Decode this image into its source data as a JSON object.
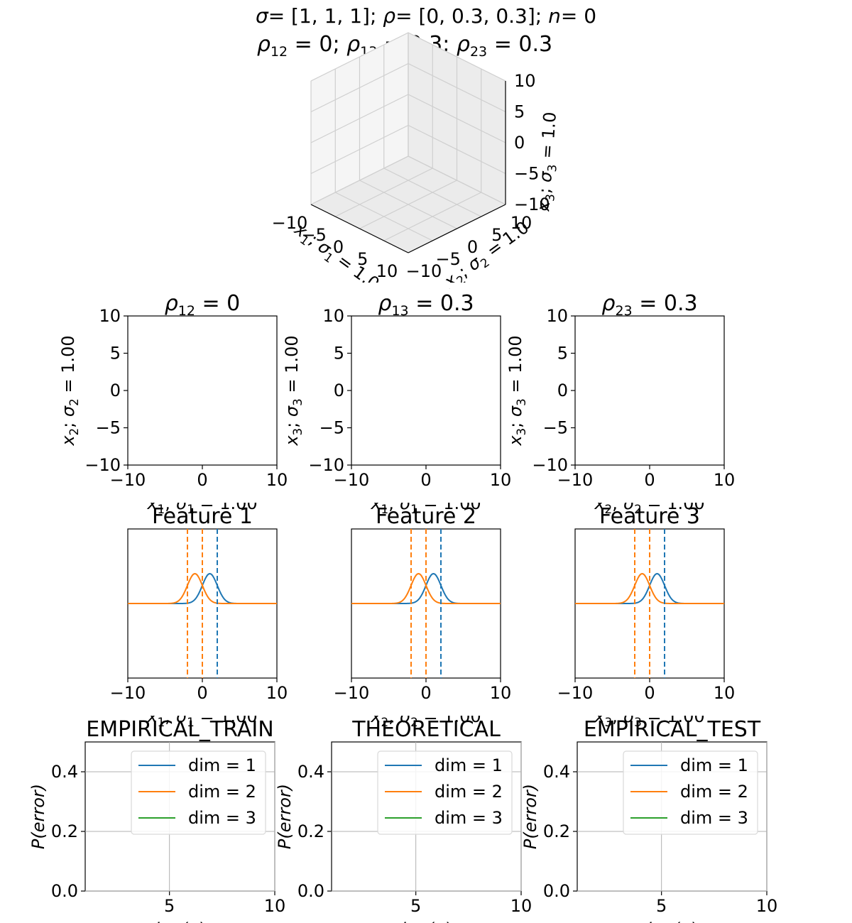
{
  "title": {
    "line1": {
      "sigma_label": "σ",
      "sigma_value": " [1, 1, 1]; ",
      "rho_label": "ρ",
      "rho_value": " [0, 0.3, 0.3]; ",
      "n_label": "n",
      "n_value": " 0"
    },
    "line2": {
      "rho12": "0",
      "rho13": "0.3",
      "rho23": "0.3"
    }
  },
  "colors": {
    "blue": "#1f77b4",
    "orange": "#ff7f0e",
    "green": "#2ca02c",
    "grid": "#b0b0b0"
  },
  "chart_data": [
    {
      "type": "scatter3d",
      "title": "",
      "xlabel": "x1; σ1 = 1.0",
      "ylabel": "x2; σ2 = 1.0",
      "zlabel": "x3; σ3 = 1.0",
      "xlim": [
        -10,
        10
      ],
      "ylim": [
        -10,
        10
      ],
      "zlim": [
        -10,
        10
      ],
      "xticks": [
        "−10",
        "−5",
        "0",
        "5",
        "10"
      ],
      "yticks": [
        "−10",
        "−5",
        "0",
        "5",
        "10"
      ],
      "zticks": [
        "−10",
        "−5",
        "0",
        "5",
        "10"
      ],
      "points": []
    },
    {
      "type": "scatter",
      "title": "ρ12 = 0",
      "title_sub": "12",
      "title_value": "0",
      "xlabel": "x1; σ1 = 1.00",
      "ylabel": "x2; σ2 = 1.00",
      "xlim": [
        -10,
        10
      ],
      "ylim": [
        -10,
        10
      ],
      "xticks": [
        "−10",
        "0",
        "10"
      ],
      "yticks": [
        "10",
        "5",
        "0",
        "−5",
        "−10"
      ],
      "points": []
    },
    {
      "type": "scatter",
      "title": "ρ13 = 0.3",
      "title_sub": "13",
      "title_value": "0.3",
      "xlabel": "x1; σ1 = 1.00",
      "ylabel": "x3; σ3 = 1.00",
      "xlim": [
        -10,
        10
      ],
      "ylim": [
        -10,
        10
      ],
      "xticks": [
        "−10",
        "0",
        "10"
      ],
      "yticks": [
        "10",
        "5",
        "0",
        "−5",
        "−10"
      ],
      "points": []
    },
    {
      "type": "scatter",
      "title": "ρ23 = 0.3",
      "title_sub": "23",
      "title_value": "0.3",
      "xlabel": "x2; σ2 = 1.00",
      "ylabel": "x3; σ3 = 1.00",
      "xlim": [
        -10,
        10
      ],
      "ylim": [
        -10,
        10
      ],
      "xticks": [
        "−10",
        "0",
        "10"
      ],
      "yticks": [
        "10",
        "5",
        "0",
        "−5",
        "−10"
      ],
      "points": []
    },
    {
      "type": "line",
      "title": "Feature 1",
      "xlabel": "x1; σ1 = 1.00",
      "xlim": [
        -10,
        10
      ],
      "xticks": [
        "−10",
        "0",
        "10"
      ],
      "series": [
        {
          "color": "blue",
          "mean": 1,
          "sigma": 1
        },
        {
          "color": "orange",
          "mean": -1,
          "sigma": 1
        }
      ],
      "vlines": [
        {
          "x": 2,
          "color": "blue"
        },
        {
          "x": 0,
          "color": "orange"
        },
        {
          "x": -2,
          "color": "orange"
        }
      ]
    },
    {
      "type": "line",
      "title": "Feature 2",
      "xlabel": "x2; σ2 = 1.00",
      "xlim": [
        -10,
        10
      ],
      "xticks": [
        "−10",
        "0",
        "10"
      ],
      "series": [
        {
          "color": "blue",
          "mean": 1,
          "sigma": 1
        },
        {
          "color": "orange",
          "mean": -1,
          "sigma": 1
        }
      ],
      "vlines": [
        {
          "x": 2,
          "color": "blue"
        },
        {
          "x": 0,
          "color": "orange"
        },
        {
          "x": -2,
          "color": "orange"
        }
      ]
    },
    {
      "type": "line",
      "title": "Feature 3",
      "xlabel": "x3; σ3 = 1.00",
      "xlim": [
        -10,
        10
      ],
      "xticks": [
        "−10",
        "0",
        "10"
      ],
      "series": [
        {
          "color": "blue",
          "mean": 1,
          "sigma": 1
        },
        {
          "color": "orange",
          "mean": -1,
          "sigma": 1
        }
      ],
      "vlines": [
        {
          "x": 2,
          "color": "blue"
        },
        {
          "x": 0,
          "color": "orange"
        },
        {
          "x": -2,
          "color": "orange"
        }
      ]
    },
    {
      "type": "line",
      "title": "EMPIRICAL_TRAIN",
      "ylabel": "P(error)",
      "xlabel": "log(n)",
      "xlim": [
        1,
        10
      ],
      "ylim": [
        0,
        0.5
      ],
      "xticks": [
        "5",
        "10"
      ],
      "yticks": [
        "0.0",
        "0.2",
        "0.4"
      ],
      "grid": true,
      "legend": "top-right",
      "series": [
        {
          "name": "dim = 1",
          "color": "blue",
          "values": []
        },
        {
          "name": "dim = 2",
          "color": "orange",
          "values": []
        },
        {
          "name": "dim = 3",
          "color": "green",
          "values": []
        }
      ]
    },
    {
      "type": "line",
      "title": "THEORETICAL",
      "ylabel": "P(error)",
      "xlabel": "log(n)",
      "xlim": [
        1,
        10
      ],
      "ylim": [
        0,
        0.5
      ],
      "xticks": [
        "5",
        "10"
      ],
      "yticks": [
        "0.0",
        "0.2",
        "0.4"
      ],
      "grid": true,
      "legend": "top-right",
      "series": [
        {
          "name": "dim = 1",
          "color": "blue",
          "values": []
        },
        {
          "name": "dim = 2",
          "color": "orange",
          "values": []
        },
        {
          "name": "dim = 3",
          "color": "green",
          "values": []
        }
      ]
    },
    {
      "type": "line",
      "title": "EMPIRICAL_TEST",
      "ylabel": "P(error)",
      "xlabel": "log(n)",
      "xlim": [
        1,
        10
      ],
      "ylim": [
        0,
        0.5
      ],
      "xticks": [
        "5",
        "10"
      ],
      "yticks": [
        "0.0",
        "0.2",
        "0.4"
      ],
      "grid": true,
      "legend": "top-right",
      "series": [
        {
          "name": "dim = 1",
          "color": "blue",
          "values": []
        },
        {
          "name": "dim = 2",
          "color": "orange",
          "values": []
        },
        {
          "name": "dim = 3",
          "color": "green",
          "values": []
        }
      ]
    }
  ]
}
